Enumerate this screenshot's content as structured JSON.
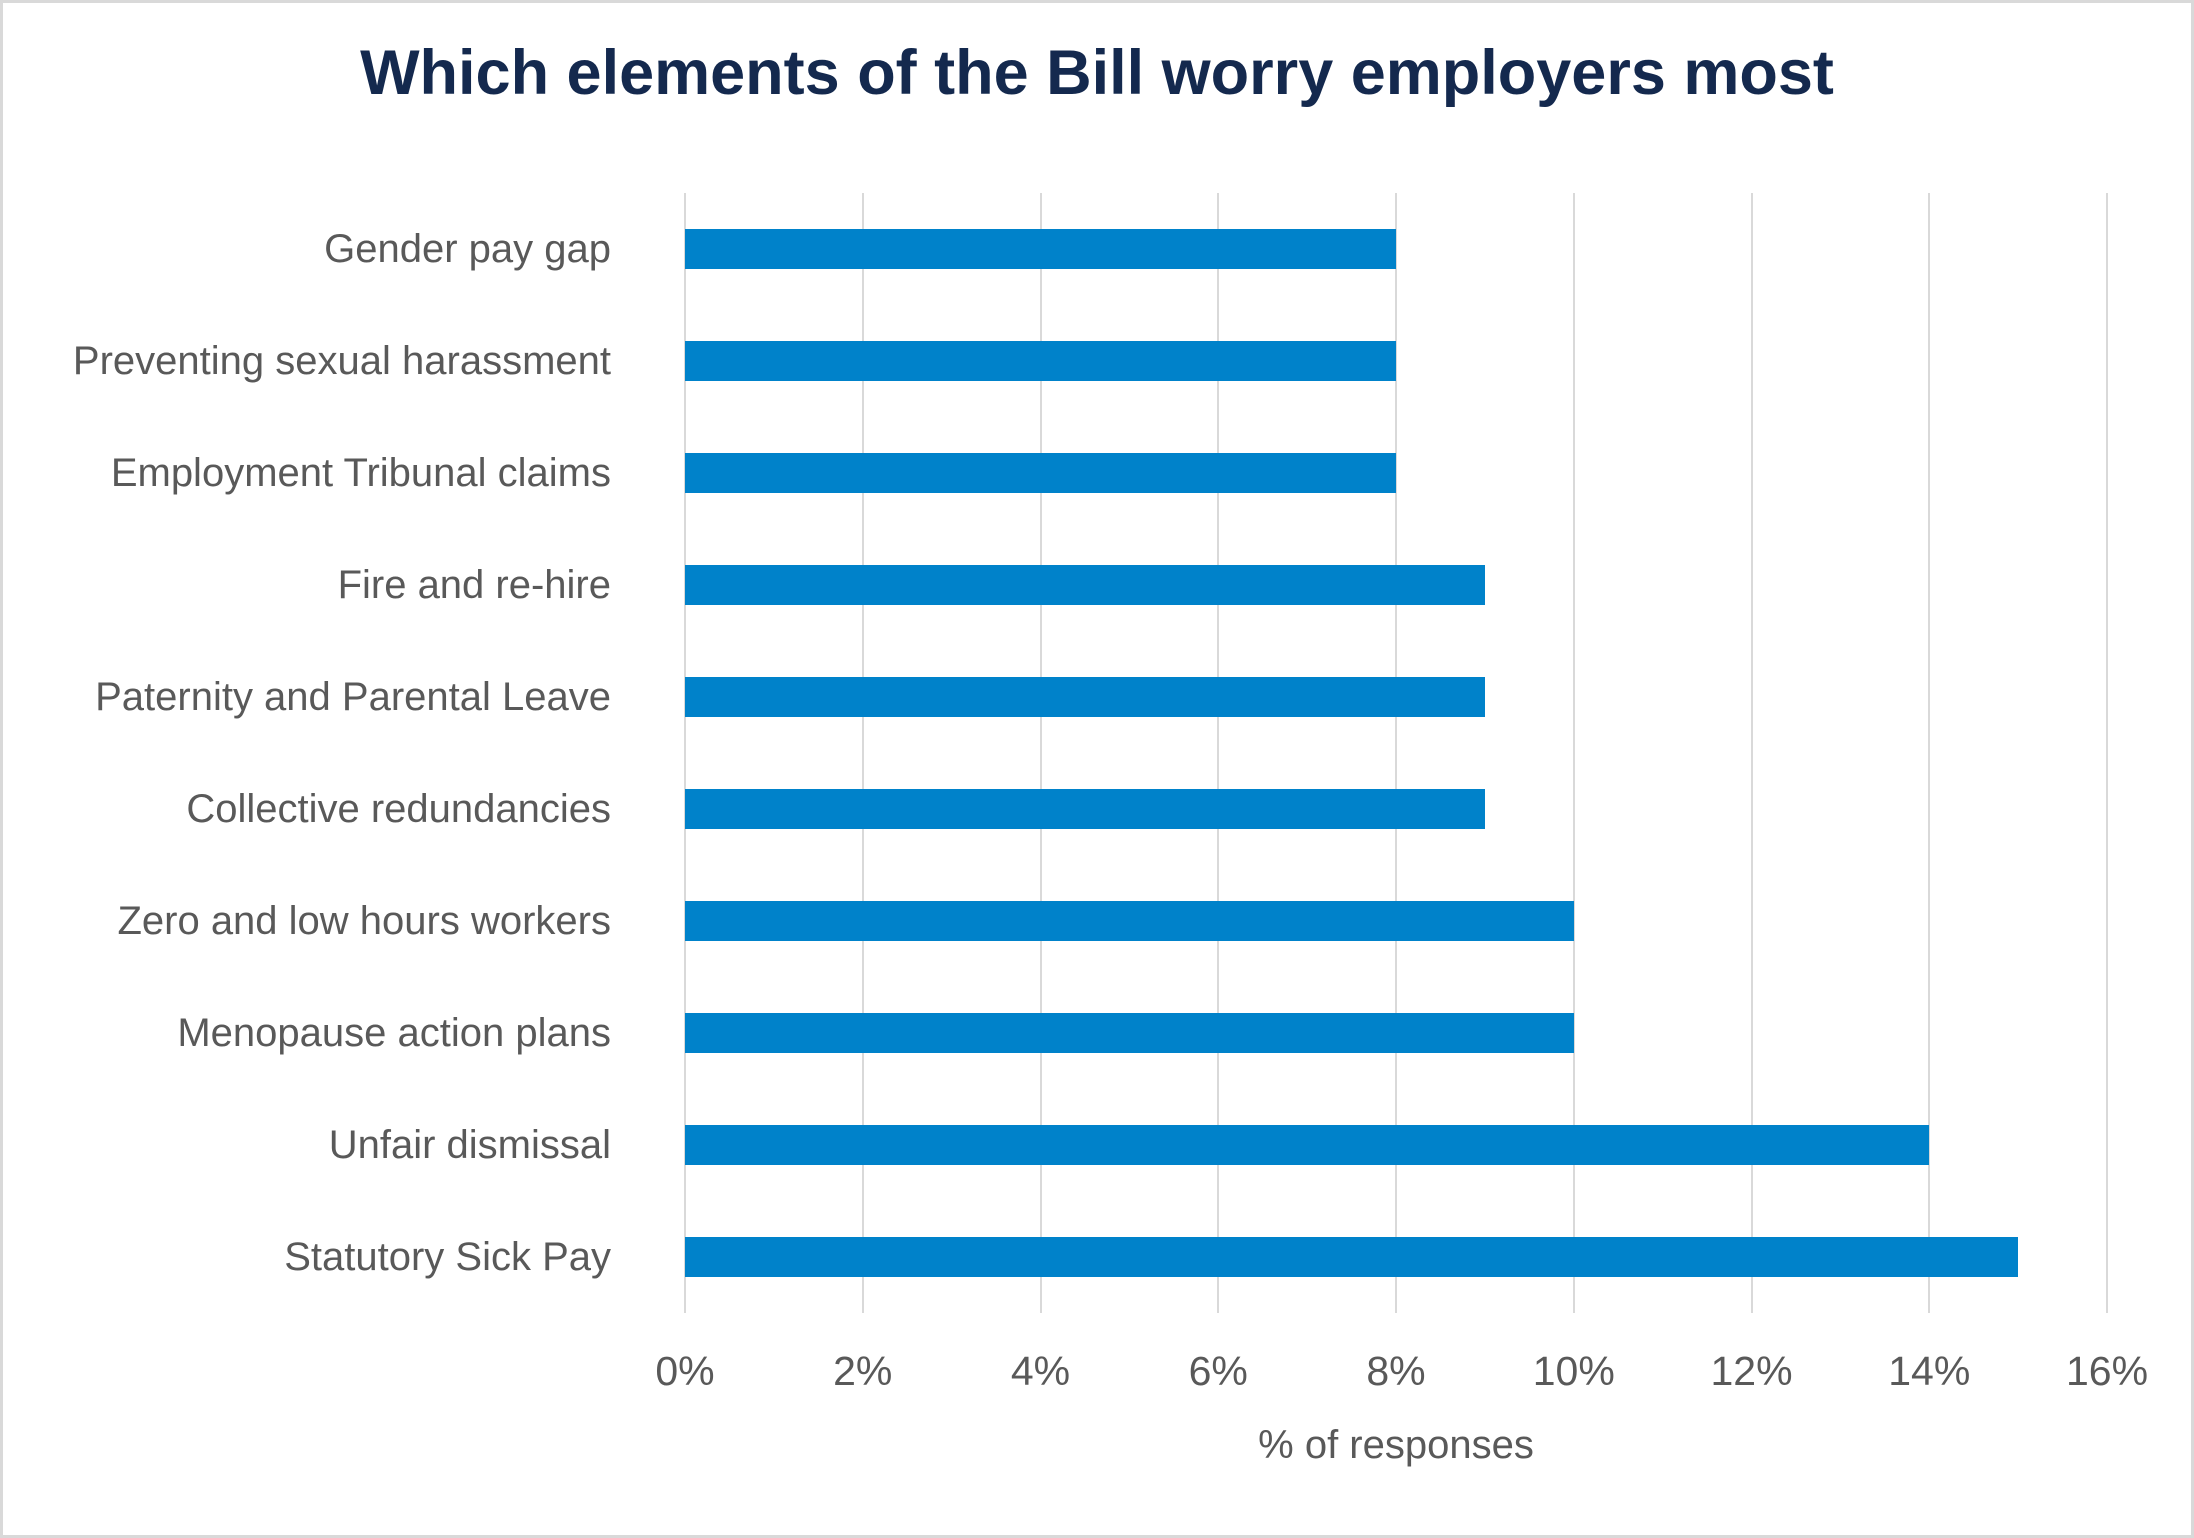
{
  "title": "Which elements of the Bill worry employers most",
  "colors": {
    "bar": "#0082ca",
    "grid": "#d9d9d9",
    "axis_text": "#595959",
    "title_text": "#14294e",
    "frame_border": "#d9d9d9",
    "background": "#ffffff"
  },
  "chart_data": {
    "type": "bar",
    "orientation": "horizontal",
    "title": "Which elements of the Bill worry employers most",
    "categories": [
      "Gender pay gap",
      "Preventing sexual harassment",
      "Employment Tribunal claims",
      "Fire and re-hire",
      "Paternity and Parental Leave",
      "Collective redundancies",
      "Zero and low hours workers",
      "Menopause action plans",
      "Unfair dismissal",
      "Statutory Sick Pay"
    ],
    "values": [
      8,
      8,
      8,
      9,
      9,
      9,
      10,
      10,
      14,
      15
    ],
    "xlabel": "% of responses",
    "ylabel": "",
    "xlim": [
      0,
      16
    ],
    "xtick_step": 2,
    "xtick_labels": [
      "0%",
      "2%",
      "4%",
      "6%",
      "8%",
      "10%",
      "12%",
      "14%",
      "16%"
    ],
    "grid": true,
    "legend": false
  }
}
